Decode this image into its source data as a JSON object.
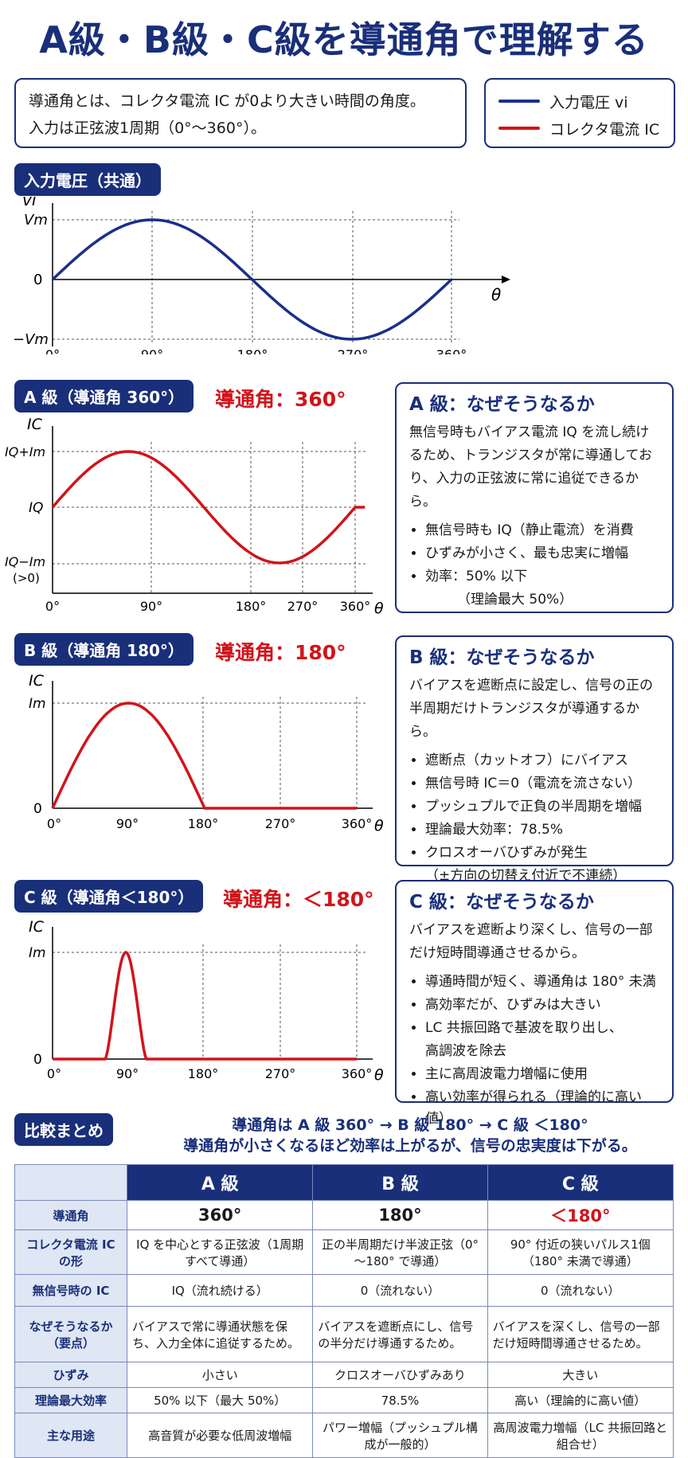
{
  "title": "A級・B級・C級を導通角で理解する",
  "intro": {
    "line1": "導通角とは、コレクタ電流 IC が0より大きい時間の角度。",
    "line2": "入力は正弦波1周期（0°～360°）。"
  },
  "legend": {
    "input": "入力電圧 vi",
    "collector": "コレクタ電流 IC",
    "colors": {
      "input": "#1a2f8c",
      "collector": "#d1141b"
    }
  },
  "input_section": {
    "label": "入力電圧（共通）",
    "y_axis": "vi",
    "y_ticks": [
      "Vm",
      "0",
      "−Vm"
    ],
    "x_axis": "θ",
    "x_ticks": [
      "0°",
      "90°",
      "180°",
      "270°",
      "360°"
    ]
  },
  "class_a": {
    "label": "A 級（導通角 360°）",
    "condition": "導通角：360°",
    "y_axis": "IC",
    "y_ticks": [
      "IQ+Im",
      "IQ",
      "IQ−Im",
      "(>0)"
    ],
    "x_ticks": [
      "0°",
      "90°",
      "180°",
      "270°",
      "360°"
    ],
    "x_axis": "θ",
    "panel_title": "A 級：なぜそうなるか",
    "panel_text": "無信号時もバイアス電流 IQ を流し続けるため、トランジスタが常に導通しており、入力の正弦波に常に追従できるから。",
    "bullets": [
      "無信号時も IQ（静止電流）を消費",
      "ひずみが小さく、最も忠実に増幅",
      "効率：50% 以下",
      "（理論最大 50%）"
    ]
  },
  "class_b": {
    "label": "B 級（導通角 180°）",
    "condition": "導通角：180°",
    "y_axis": "IC",
    "y_ticks": [
      "Im",
      "0"
    ],
    "x_ticks": [
      "0°",
      "90°",
      "180°",
      "270°",
      "360°"
    ],
    "x_axis": "θ",
    "panel_title": "B 級：なぜそうなるか",
    "panel_text": "バイアスを遮断点に設定し、信号の正の半周期だけトランジスタが導通するから。",
    "bullets": [
      "遮断点（カットオフ）にバイアス",
      "無信号時 IC＝0（電流を流さない）",
      "プッシュプルで正負の半周期を増幅",
      "理論最大効率：78.5%",
      "クロスオーバひずみが発生",
      "（±方向の切替え付近で不連続）"
    ]
  },
  "class_c": {
    "label": "C 級（導通角＜180°）",
    "condition": "導通角：＜180°",
    "y_axis": "IC",
    "y_ticks": [
      "Im",
      "0"
    ],
    "x_ticks": [
      "0°",
      "90°",
      "180°",
      "270°",
      "360°"
    ],
    "x_axis": "θ",
    "panel_title": "C 級：なぜそうなるか",
    "panel_text": "バイアスを遮断より深くし、信号の一部だけ短時間導通させるから。",
    "bullets": [
      "導通時間が短く、導通角は 180° 未満",
      "高効率だが、ひずみは大きい",
      "LC 共振回路で基波を取り出し、",
      "高調波を除去",
      "主に高周波電力増幅に使用",
      "高い効率が得られる（理論的に高い値）"
    ]
  },
  "summary": {
    "label": "比較まとめ",
    "line1": "導通角は A 級 360° → B 級 180° → C 級 ＜180°",
    "line2": "導通角が小さくなるほど効率は上がるが、信号の忠実度は下がる。"
  },
  "table": {
    "headers": [
      "A 級",
      "B 級",
      "C 級"
    ],
    "rows": [
      {
        "head": "導通角",
        "cells": [
          "360°",
          "180°",
          "＜180°"
        ]
      },
      {
        "head": "コレクタ電流 IC の形",
        "cells": [
          "IQ を中心とする正弦波（1周期すべて導通）",
          "正の半周期だけ半波正弦（0°～180° で導通）",
          "90° 付近の狭いパルス1個（180° 未満で導通）"
        ]
      },
      {
        "head": "無信号時の IC",
        "cells": [
          "IQ（流れ続ける）",
          "0（流れない）",
          "0（流れない）"
        ]
      },
      {
        "head": "なぜそうなるか（要点）",
        "cells": [
          "バイアスで常に導通状態を保ち、入力全体に追従するため。",
          "バイアスを遮断点にし、信号の半分だけ導通するため。",
          "バイアスを深くし、信号の一部だけ短時間導通させるため。"
        ]
      },
      {
        "head": "ひずみ",
        "cells": [
          "小さい",
          "クロスオーバひずみあり",
          "大きい"
        ]
      },
      {
        "head": "理論最大効率",
        "cells": [
          "50% 以下（最大 50%）",
          "78.5%",
          "高い（理論的に高い値）"
        ]
      },
      {
        "head": "主な用途",
        "cells": [
          "高音質が必要な低周波増幅",
          "パワー増幅（プッシュプル構成が一般的）",
          "高周波電力増幅（LC 共振回路と組合せ）"
        ]
      }
    ]
  },
  "chart_data": [
    {
      "type": "line",
      "series": [
        {
          "name": "入力電圧 vi",
          "x": [
            0,
            90,
            180,
            270,
            360
          ],
          "y": [
            0,
            1,
            0,
            -1,
            0
          ]
        }
      ],
      "xlim": [
        0,
        360
      ],
      "ylabel": "vi",
      "xlabel": "θ"
    },
    {
      "type": "line",
      "series": [
        {
          "name": "コレクタ電流 IC",
          "x": [
            0,
            90,
            180,
            270,
            360
          ],
          "y": [
            0,
            1,
            0,
            -1,
            0
          ]
        }
      ],
      "xlim": [
        0,
        360
      ],
      "ylabel": "IC",
      "xlabel": "θ"
    },
    {
      "type": "line",
      "series": [
        {
          "name": "コレクタ電流 IC",
          "x": [
            0,
            90,
            180,
            270,
            360
          ],
          "y": [
            0,
            1,
            0,
            0,
            0
          ]
        }
      ],
      "xlim": [
        0,
        360
      ],
      "ylabel": "IC",
      "xlabel": "θ"
    },
    {
      "type": "line",
      "series": [
        {
          "name": "コレクタ電流 IC",
          "x": [
            0,
            90,
            180,
            270,
            360
          ],
          "y": [
            0,
            1,
            0,
            0,
            0
          ]
        }
      ],
      "xlim": [
        0,
        360
      ],
      "ylabel": "IC",
      "xlabel": "θ"
    }
  ]
}
